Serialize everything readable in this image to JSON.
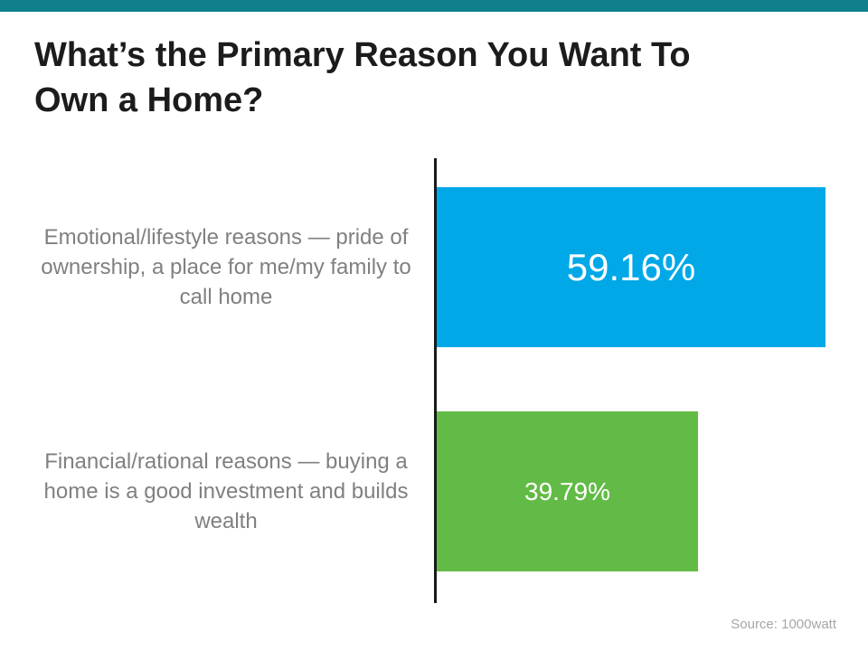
{
  "header": {
    "title_lines": [
      "What’s the Primary Reason You Want To",
      "Own a Home?"
    ]
  },
  "chart_data": {
    "type": "bar",
    "orientation": "horizontal",
    "title": "What’s the Primary Reason You Want To Own a Home?",
    "categories": [
      "Emotional/lifestyle reasons — pride of ownership, a place for me/my family to call home",
      "Financial/rational reasons — buying a home is a good investment and builds wealth"
    ],
    "values": [
      59.16,
      39.79
    ],
    "value_labels": [
      "59.16%",
      "39.79%"
    ],
    "bar_colors": [
      "#00a8e8",
      "#62bb46"
    ],
    "xlim": [
      0,
      100
    ],
    "grid": false,
    "legend": false
  },
  "colors": {
    "top_accent": "#0f7f8b",
    "title_text": "#1c1c1c",
    "category_label_text": "#808080",
    "value_text": "#ffffff",
    "axis_line": "#1a1a1a",
    "source_text": "#a6a6a6"
  },
  "footer": {
    "source": "Source: 1000watt"
  }
}
